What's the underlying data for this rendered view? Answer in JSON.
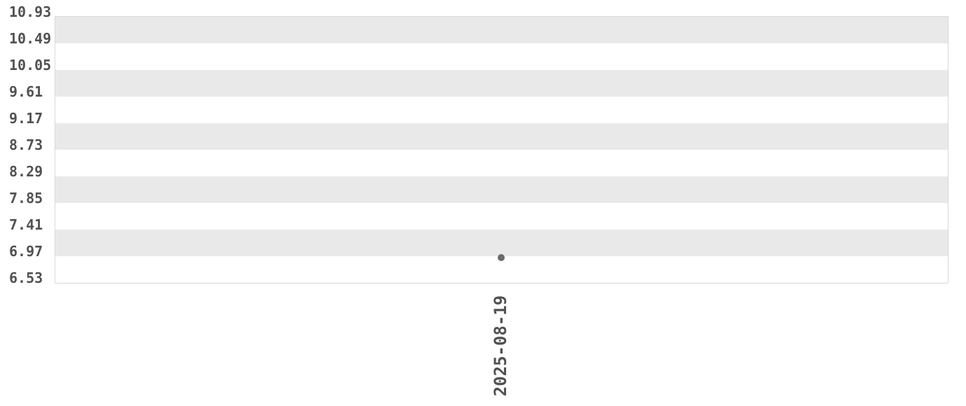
{
  "chart": {
    "y_axis_labels": [
      "10.93",
      "10.49",
      "10.05",
      "9.61",
      "9.17",
      "8.73",
      "8.29",
      "7.85",
      "7.41",
      "6.97",
      "6.53"
    ],
    "x_axis_labels": [
      "2025-08-19"
    ],
    "colors": {
      "background": "#ffffff",
      "band_fill": "#e9e9e9",
      "plot_border": "#d9d9d9",
      "tick_label": "#515151",
      "point_fill": "#6b6b6b"
    }
  },
  "chart_data": {
    "type": "scatter",
    "x": [
      "2025-08-19"
    ],
    "y": [
      6.94
    ],
    "title": "",
    "xlabel": "",
    "ylabel": "",
    "ylim": [
      6.53,
      10.93
    ],
    "yticks": [
      6.53,
      6.97,
      7.41,
      7.85,
      8.29,
      8.73,
      9.17,
      9.61,
      10.05,
      10.49,
      10.93
    ],
    "xticks": [
      "2025-08-19"
    ],
    "grid": "alternating-horizontal-bands",
    "band_order": "gray-band-topmost",
    "legend_position": "none",
    "marker": "circle"
  }
}
